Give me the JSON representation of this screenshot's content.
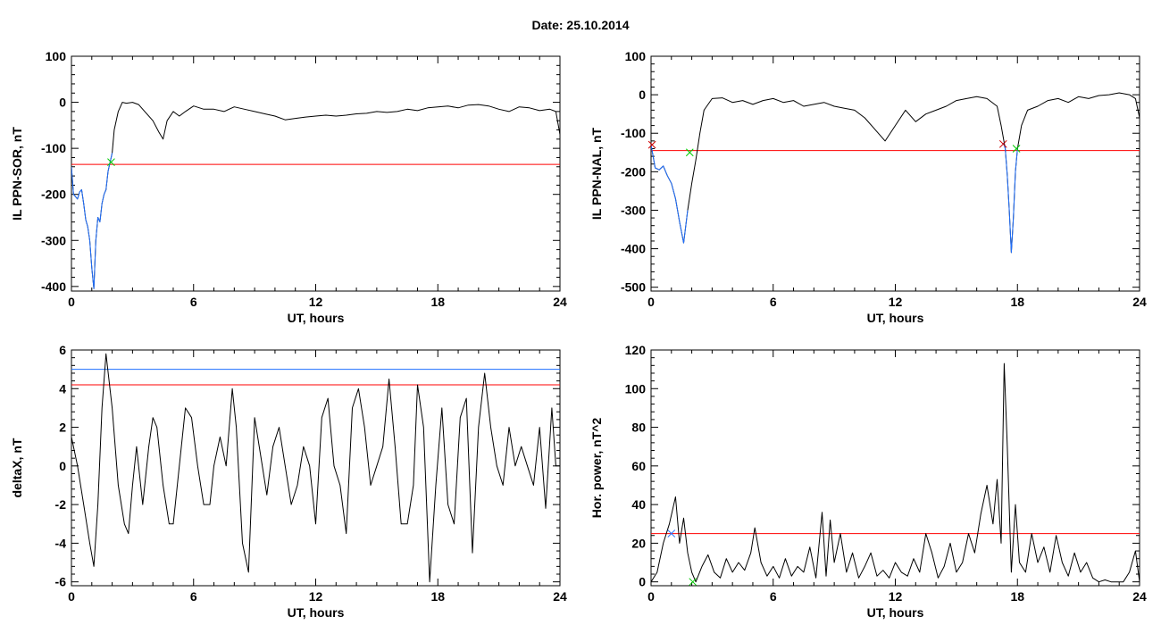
{
  "page": {
    "title": "Date:  25.10.2014"
  },
  "chart_data": [
    {
      "type": "line",
      "xlabel": "UT, hours",
      "ylabel": "IL PPN-SOR, nT",
      "xlim": [
        0,
        24
      ],
      "ylim": [
        -410,
        100
      ],
      "xticks": [
        0,
        6,
        12,
        18,
        24
      ],
      "yticks": [
        -400,
        -300,
        -200,
        -100,
        0,
        100
      ],
      "grid": false,
      "series": [
        {
          "color": "#000000",
          "x": [
            0,
            0.1,
            0.2,
            0.3,
            0.4,
            0.5,
            0.6,
            0.7,
            0.8,
            0.9,
            1.0,
            1.1,
            1.2,
            1.3,
            1.4,
            1.5,
            1.6,
            1.7,
            1.8,
            1.9,
            2.0,
            2.1,
            2.3,
            2.5,
            2.7,
            3.0,
            3.3,
            3.6,
            4.0,
            4.3,
            4.5,
            4.7,
            5.0,
            5.3,
            5.6,
            6.0,
            6.5,
            7.0,
            7.5,
            8.0,
            8.5,
            9.0,
            9.5,
            10.0,
            10.5,
            11.0,
            11.5,
            12.0,
            12.5,
            13.0,
            13.5,
            14.0,
            14.5,
            15.0,
            15.5,
            16.0,
            16.5,
            17.0,
            17.5,
            18.0,
            18.5,
            19.0,
            19.5,
            20.0,
            20.5,
            21.0,
            21.5,
            22.0,
            22.5,
            23.0,
            23.5,
            23.8,
            24.0
          ],
          "y": [
            -140,
            -200,
            -205,
            -210,
            -195,
            -190,
            -220,
            -255,
            -270,
            -300,
            -360,
            -405,
            -300,
            -250,
            -260,
            -220,
            -200,
            -190,
            -150,
            -130,
            -110,
            -60,
            -20,
            0,
            -2,
            0,
            -5,
            -20,
            -40,
            -65,
            -80,
            -40,
            -20,
            -30,
            -20,
            -8,
            -15,
            -15,
            -20,
            -10,
            -15,
            -20,
            -25,
            -30,
            -38,
            -35,
            -32,
            -30,
            -28,
            -30,
            -28,
            -25,
            -24,
            -20,
            -22,
            -20,
            -15,
            -18,
            -12,
            -10,
            -8,
            -12,
            -6,
            -5,
            -8,
            -15,
            -20,
            -10,
            -12,
            -18,
            -15,
            -20,
            -70
          ]
        },
        {
          "color": "#1f6fff",
          "x": [
            0,
            0.1,
            0.2,
            0.3,
            0.4,
            0.5,
            0.6,
            0.7,
            0.8,
            0.9,
            1.0,
            1.1,
            1.2,
            1.3,
            1.4,
            1.5,
            1.6,
            1.7,
            1.8,
            1.9,
            2.0
          ],
          "y": [
            -140,
            -200,
            -205,
            -210,
            -195,
            -190,
            -220,
            -255,
            -270,
            -300,
            -360,
            -405,
            -300,
            -250,
            -260,
            -220,
            -200,
            -190,
            -150,
            -130,
            -110
          ]
        }
      ],
      "thresholds": [
        {
          "y": -135,
          "color": "#ff0000"
        }
      ],
      "markers": [
        {
          "x": 1.95,
          "y": -130,
          "color": "#00cc00",
          "symbol": "x"
        }
      ]
    },
    {
      "type": "line",
      "xlabel": "UT, hours",
      "ylabel": "IL PPN-NAL, nT",
      "xlim": [
        0,
        24
      ],
      "ylim": [
        -510,
        100
      ],
      "xticks": [
        0,
        6,
        12,
        18,
        24
      ],
      "yticks": [
        -500,
        -400,
        -300,
        -200,
        -100,
        0,
        100
      ],
      "grid": false,
      "series": [
        {
          "color": "#000000",
          "x": [
            0,
            0.2,
            0.4,
            0.6,
            0.8,
            1.0,
            1.2,
            1.4,
            1.6,
            1.8,
            2.0,
            2.2,
            2.4,
            2.6,
            3.0,
            3.5,
            4.0,
            4.5,
            5.0,
            5.5,
            6.0,
            6.5,
            7.0,
            7.5,
            8.0,
            8.5,
            9.0,
            9.5,
            10.0,
            10.5,
            11.0,
            11.5,
            12.0,
            12.5,
            13.0,
            13.5,
            14.0,
            14.5,
            15.0,
            15.5,
            16.0,
            16.5,
            17.0,
            17.2,
            17.4,
            17.5,
            17.6,
            17.7,
            17.8,
            17.9,
            18.0,
            18.2,
            18.5,
            19.0,
            19.5,
            20.0,
            20.5,
            21.0,
            21.5,
            22.0,
            22.5,
            23.0,
            23.5,
            23.8,
            24.0
          ],
          "y": [
            -130,
            -190,
            -195,
            -185,
            -210,
            -230,
            -270,
            -330,
            -385,
            -300,
            -230,
            -170,
            -100,
            -40,
            -10,
            -8,
            -20,
            -15,
            -25,
            -15,
            -10,
            -20,
            -15,
            -30,
            -25,
            -20,
            -30,
            -35,
            -40,
            -60,
            -90,
            -120,
            -80,
            -40,
            -70,
            -50,
            -40,
            -30,
            -15,
            -10,
            -5,
            -10,
            -30,
            -80,
            -140,
            -210,
            -300,
            -410,
            -320,
            -200,
            -140,
            -80,
            -40,
            -30,
            -15,
            -10,
            -20,
            -5,
            -10,
            -2,
            0,
            5,
            0,
            -10,
            -60
          ]
        },
        {
          "color": "#1f6fff",
          "x": [
            0,
            0.2,
            0.4,
            0.6,
            0.8,
            1.0,
            1.2,
            1.4,
            1.6,
            1.8
          ],
          "y": [
            -130,
            -190,
            -195,
            -185,
            -210,
            -230,
            -270,
            -330,
            -385,
            -300
          ]
        },
        {
          "color": "#1f6fff",
          "x": [
            17.3,
            17.4,
            17.5,
            17.6,
            17.7,
            17.8,
            17.9,
            18.0
          ],
          "y": [
            -125,
            -140,
            -210,
            -300,
            -410,
            -320,
            -200,
            -140
          ]
        }
      ],
      "thresholds": [
        {
          "y": -145,
          "color": "#ff0000"
        }
      ],
      "markers": [
        {
          "x": 0.05,
          "y": -130,
          "color": "#cc0000",
          "symbol": "x"
        },
        {
          "x": 1.9,
          "y": -150,
          "color": "#00cc00",
          "symbol": "x"
        },
        {
          "x": 17.3,
          "y": -128,
          "color": "#cc0000",
          "symbol": "x"
        },
        {
          "x": 17.95,
          "y": -140,
          "color": "#00cc00",
          "symbol": "x"
        }
      ]
    },
    {
      "type": "line",
      "xlabel": "UT, hours",
      "ylabel": "deltaX, nT",
      "xlim": [
        0,
        24
      ],
      "ylim": [
        -6.2,
        6
      ],
      "xticks": [
        0,
        6,
        12,
        18,
        24
      ],
      "yticks": [
        -6,
        -4,
        -2,
        0,
        2,
        4,
        6
      ],
      "grid": false,
      "series": [
        {
          "color": "#000000",
          "x": [
            0,
            0.3,
            0.6,
            0.9,
            1.1,
            1.3,
            1.5,
            1.7,
            2.0,
            2.3,
            2.6,
            2.8,
            3.0,
            3.2,
            3.5,
            3.8,
            4.0,
            4.2,
            4.5,
            4.8,
            5.0,
            5.3,
            5.6,
            5.9,
            6.2,
            6.5,
            6.8,
            7.0,
            7.3,
            7.6,
            7.9,
            8.1,
            8.4,
            8.7,
            9.0,
            9.3,
            9.6,
            9.9,
            10.2,
            10.5,
            10.8,
            11.1,
            11.4,
            11.7,
            12.0,
            12.3,
            12.6,
            12.9,
            13.2,
            13.5,
            13.8,
            14.1,
            14.4,
            14.7,
            15.0,
            15.3,
            15.6,
            15.9,
            16.2,
            16.5,
            16.8,
            17.0,
            17.3,
            17.6,
            17.9,
            18.2,
            18.5,
            18.8,
            19.1,
            19.4,
            19.7,
            20.0,
            20.3,
            20.6,
            20.9,
            21.2,
            21.5,
            21.8,
            22.1,
            22.4,
            22.7,
            23.0,
            23.3,
            23.6,
            23.8,
            24.0
          ],
          "y": [
            1.5,
            0,
            -2,
            -4,
            -5.2,
            -2,
            3,
            5.8,
            3,
            -1,
            -3,
            -3.5,
            -1,
            1,
            -2,
            1,
            2.5,
            2,
            -1,
            -3,
            -3,
            0,
            3,
            2.5,
            0,
            -2,
            -2,
            0,
            1.5,
            0,
            4,
            2,
            -4,
            -5.5,
            2.5,
            0.5,
            -1.5,
            1,
            2,
            0,
            -2,
            -1,
            1,
            0,
            -3,
            2.5,
            3.5,
            0,
            -1,
            -3.5,
            3,
            4,
            2,
            -1,
            0,
            1,
            4.5,
            1,
            -3,
            -3,
            -1,
            4.2,
            2,
            -6,
            -1,
            3,
            -2,
            -3,
            2.5,
            3.5,
            -4.5,
            2,
            4.8,
            2,
            0,
            -1,
            2,
            0,
            1,
            0,
            -1,
            2,
            -2.2,
            3,
            0,
            0
          ]
        }
      ],
      "thresholds": [
        {
          "y": 5.0,
          "color": "#1f6fff"
        },
        {
          "y": 4.2,
          "color": "#ff0000"
        }
      ],
      "markers": []
    },
    {
      "type": "line",
      "xlabel": "UT, hours",
      "ylabel": "Hor. power, nT^2",
      "xlim": [
        0,
        24
      ],
      "ylim": [
        -2,
        120
      ],
      "xticks": [
        0,
        6,
        12,
        18,
        24
      ],
      "yticks": [
        0,
        20,
        40,
        60,
        80,
        100,
        120
      ],
      "grid": false,
      "series": [
        {
          "color": "#000000",
          "x": [
            0,
            0.3,
            0.6,
            0.9,
            1.2,
            1.4,
            1.6,
            1.8,
            2.0,
            2.2,
            2.5,
            2.8,
            3.1,
            3.4,
            3.7,
            4.0,
            4.3,
            4.6,
            4.9,
            5.1,
            5.4,
            5.7,
            6.0,
            6.3,
            6.6,
            6.9,
            7.2,
            7.5,
            7.8,
            8.1,
            8.4,
            8.6,
            8.8,
            9.0,
            9.3,
            9.6,
            9.9,
            10.2,
            10.5,
            10.8,
            11.1,
            11.4,
            11.7,
            12.0,
            12.3,
            12.6,
            12.9,
            13.2,
            13.5,
            13.8,
            14.1,
            14.4,
            14.7,
            15.0,
            15.3,
            15.6,
            15.9,
            16.2,
            16.5,
            16.8,
            17.0,
            17.2,
            17.35,
            17.5,
            17.7,
            17.9,
            18.1,
            18.4,
            18.7,
            19.0,
            19.3,
            19.6,
            19.9,
            20.2,
            20.5,
            20.8,
            21.1,
            21.4,
            21.7,
            22.0,
            22.3,
            22.6,
            22.9,
            23.2,
            23.5,
            23.8,
            24.0
          ],
          "y": [
            0,
            5,
            20,
            30,
            44,
            20,
            33,
            15,
            5,
            0,
            8,
            14,
            5,
            2,
            12,
            5,
            10,
            6,
            15,
            28,
            10,
            3,
            8,
            2,
            12,
            3,
            8,
            5,
            18,
            2,
            36,
            3,
            32,
            10,
            25,
            5,
            15,
            2,
            8,
            15,
            3,
            6,
            2,
            10,
            5,
            3,
            12,
            5,
            25,
            15,
            2,
            8,
            20,
            5,
            10,
            25,
            15,
            35,
            50,
            30,
            53,
            20,
            113,
            70,
            5,
            40,
            10,
            5,
            25,
            10,
            18,
            5,
            24,
            10,
            3,
            15,
            5,
            10,
            2,
            0,
            1,
            0,
            0,
            0,
            5,
            16,
            0
          ]
        }
      ],
      "thresholds": [
        {
          "y": 25,
          "color": "#ff0000"
        }
      ],
      "markers": [
        {
          "x": 1.0,
          "y": 25,
          "color": "#1f6fff",
          "symbol": "x"
        },
        {
          "x": 2.05,
          "y": 0,
          "color": "#00cc00",
          "symbol": "x"
        }
      ]
    }
  ]
}
